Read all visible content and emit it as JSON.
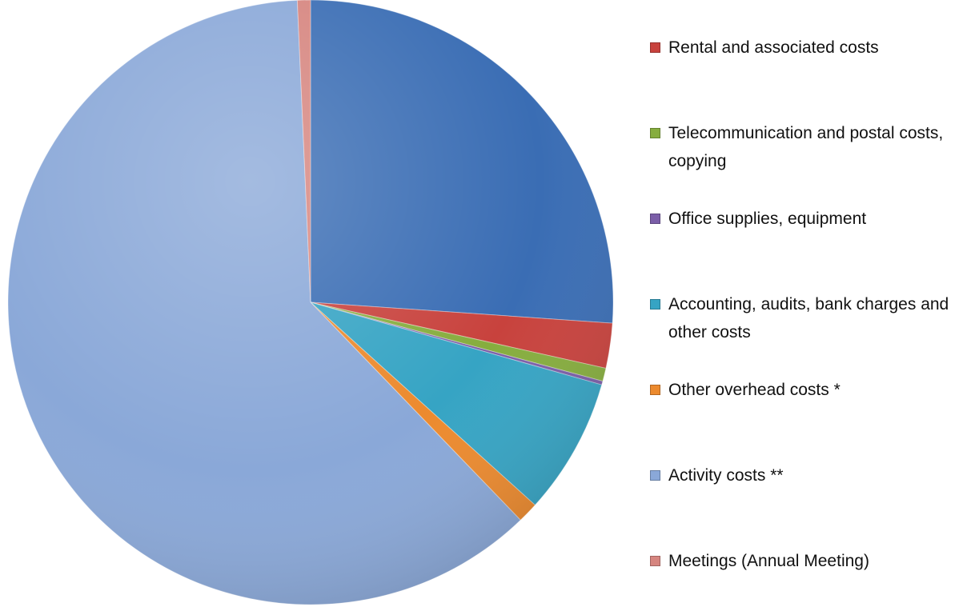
{
  "chart_data": {
    "type": "pie",
    "categories": [
      null,
      "Rental and associated costs",
      "Telecommunication and postal costs, copying",
      "Office supplies, equipment",
      "Accounting, audits, bank charges and other costs",
      "Other overhead costs *",
      "Activity costs **",
      "Meetings (Annual Meeting)"
    ],
    "values": [
      26.1,
      2.4,
      0.7,
      0.2,
      7.3,
      1.1,
      61.5,
      0.7
    ],
    "colors": [
      "#3a6db4",
      "#c8423d",
      "#86ad3e",
      "#7b5ea8",
      "#36a4c4",
      "#ec8a2e",
      "#8aa8d8",
      "#d6857f"
    ]
  }
}
